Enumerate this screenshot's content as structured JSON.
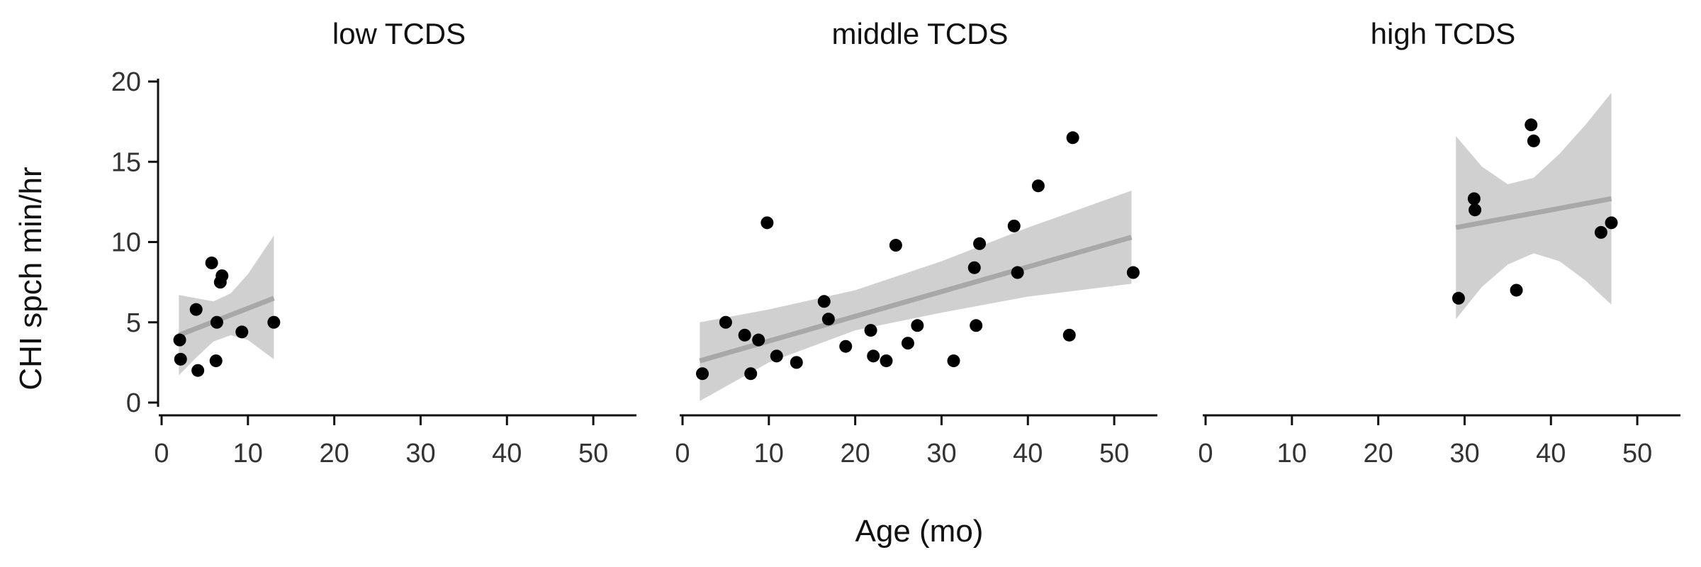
{
  "chart_data": {
    "type": "scatter",
    "xlabel": "Age (mo)",
    "ylabel": "CHI spch min/hr",
    "xlim": [
      0,
      55
    ],
    "ylim": [
      0,
      20
    ],
    "xticks": [
      0,
      10,
      20,
      30,
      40,
      50
    ],
    "yticks": [
      0,
      5,
      10,
      15,
      20
    ],
    "grid": false,
    "colors": {
      "point": "#000000",
      "fit_line": "#a8a8a8",
      "band": "#d0d0d0"
    },
    "panels": [
      {
        "title": "low TCDS",
        "points": [
          {
            "x": 2.1,
            "y": 3.9
          },
          {
            "x": 2.2,
            "y": 2.7
          },
          {
            "x": 4.0,
            "y": 5.8
          },
          {
            "x": 4.2,
            "y": 2.0
          },
          {
            "x": 5.8,
            "y": 8.7
          },
          {
            "x": 6.3,
            "y": 2.6
          },
          {
            "x": 6.4,
            "y": 5.0
          },
          {
            "x": 6.8,
            "y": 7.5
          },
          {
            "x": 7.0,
            "y": 7.9
          },
          {
            "x": 9.3,
            "y": 4.4
          },
          {
            "x": 13.0,
            "y": 5.0
          }
        ],
        "fit": {
          "x": [
            2.0,
            13.0
          ],
          "y": [
            4.2,
            6.5
          ]
        },
        "band": {
          "x": [
            2.0,
            4.0,
            6.0,
            8.0,
            10.0,
            13.0
          ],
          "upper": [
            6.7,
            6.5,
            6.3,
            6.8,
            8.0,
            10.4
          ],
          "lower": [
            1.7,
            2.8,
            3.8,
            4.2,
            3.9,
            2.7
          ]
        }
      },
      {
        "title": "middle TCDS",
        "points": [
          {
            "x": 2.3,
            "y": 1.8
          },
          {
            "x": 5.0,
            "y": 5.0
          },
          {
            "x": 7.2,
            "y": 4.2
          },
          {
            "x": 7.9,
            "y": 1.8
          },
          {
            "x": 8.8,
            "y": 3.9
          },
          {
            "x": 9.8,
            "y": 11.2
          },
          {
            "x": 10.9,
            "y": 2.9
          },
          {
            "x": 13.2,
            "y": 2.5
          },
          {
            "x": 16.4,
            "y": 6.3
          },
          {
            "x": 16.9,
            "y": 5.2
          },
          {
            "x": 18.9,
            "y": 3.5
          },
          {
            "x": 21.8,
            "y": 4.5
          },
          {
            "x": 22.1,
            "y": 2.9
          },
          {
            "x": 23.6,
            "y": 2.6
          },
          {
            "x": 24.7,
            "y": 9.8
          },
          {
            "x": 26.1,
            "y": 3.7
          },
          {
            "x": 27.2,
            "y": 4.8
          },
          {
            "x": 31.4,
            "y": 2.6
          },
          {
            "x": 33.8,
            "y": 8.4
          },
          {
            "x": 34.0,
            "y": 4.8
          },
          {
            "x": 34.4,
            "y": 9.9
          },
          {
            "x": 38.4,
            "y": 11.0
          },
          {
            "x": 38.8,
            "y": 8.1
          },
          {
            "x": 41.2,
            "y": 13.5
          },
          {
            "x": 44.8,
            "y": 4.2
          },
          {
            "x": 45.2,
            "y": 16.5
          },
          {
            "x": 52.2,
            "y": 8.1
          }
        ],
        "fit": {
          "x": [
            2.0,
            52.0
          ],
          "y": [
            2.6,
            10.3
          ]
        },
        "band": {
          "x": [
            2.0,
            10.0,
            20.0,
            30.0,
            40.0,
            52.0
          ],
          "upper": [
            5.0,
            5.8,
            7.0,
            8.8,
            10.9,
            13.2
          ],
          "lower": [
            0.1,
            2.5,
            4.5,
            5.6,
            6.6,
            7.4
          ]
        }
      },
      {
        "title": "high TCDS",
        "points": [
          {
            "x": 29.3,
            "y": 6.5
          },
          {
            "x": 31.1,
            "y": 12.7
          },
          {
            "x": 31.2,
            "y": 12.0
          },
          {
            "x": 36.0,
            "y": 7.0
          },
          {
            "x": 37.7,
            "y": 17.3
          },
          {
            "x": 38.0,
            "y": 16.3
          },
          {
            "x": 45.8,
            "y": 10.6
          },
          {
            "x": 47.0,
            "y": 11.2
          }
        ],
        "fit": {
          "x": [
            29.0,
            47.0
          ],
          "y": [
            10.9,
            12.7
          ]
        },
        "band": {
          "x": [
            29.0,
            32.0,
            35.0,
            38.0,
            41.0,
            44.0,
            47.0
          ],
          "upper": [
            16.6,
            14.7,
            13.6,
            14.0,
            15.5,
            17.3,
            19.3
          ],
          "lower": [
            5.2,
            7.2,
            8.6,
            9.3,
            8.8,
            7.6,
            6.1
          ]
        }
      }
    ]
  }
}
